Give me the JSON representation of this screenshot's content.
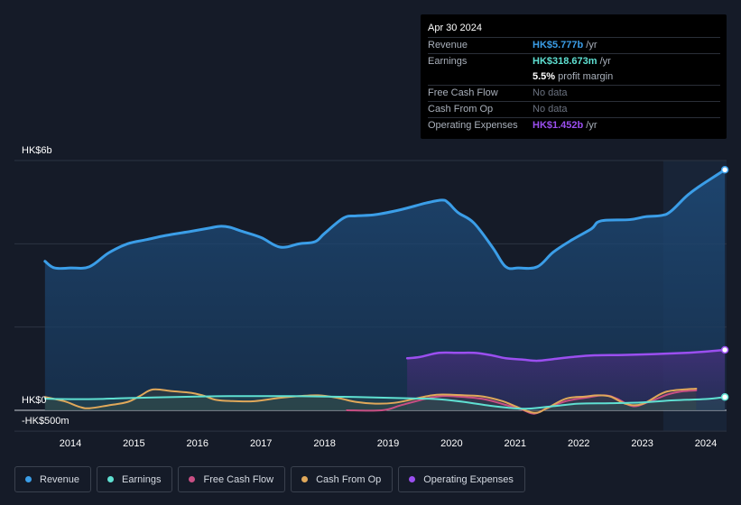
{
  "tooltip": {
    "date": "Apr 30 2024",
    "rows": {
      "revenue": {
        "label": "Revenue",
        "value": "HK$5.777b",
        "unit": "/yr"
      },
      "earnings": {
        "label": "Earnings",
        "value": "HK$318.673m",
        "unit": "/yr"
      },
      "margin": {
        "value": "5.5%",
        "text": "profit margin"
      },
      "fcf": {
        "label": "Free Cash Flow",
        "value": "No data"
      },
      "cfo": {
        "label": "Cash From Op",
        "value": "No data"
      },
      "opex": {
        "label": "Operating Expenses",
        "value": "HK$1.452b",
        "unit": "/yr"
      }
    }
  },
  "colors": {
    "revenue": "#3b9ee8",
    "earnings": "#5fe0d2",
    "fcf": "#c94f84",
    "cfo": "#e0a85a",
    "opex": "#9b4ff0"
  },
  "legend": {
    "revenue": "Revenue",
    "earnings": "Earnings",
    "fcf": "Free Cash Flow",
    "cfo": "Cash From Op",
    "opex": "Operating Expenses"
  },
  "chart_data": {
    "type": "area",
    "unit": "HK$ billions",
    "y_labels": {
      "top": "HK$6b",
      "zero": "HK$0",
      "bottom": "-HK$500m"
    },
    "ylim": [
      -0.5,
      6
    ],
    "xlim": [
      2013.3,
      2024.3
    ],
    "x_ticks": [
      "2014",
      "2015",
      "2016",
      "2017",
      "2018",
      "2019",
      "2020",
      "2021",
      "2022",
      "2023",
      "2024"
    ],
    "forecast_start": 2023.33,
    "series": [
      {
        "name": "Revenue",
        "key": "revenue",
        "points": [
          [
            2013.6,
            3.58
          ],
          [
            2013.75,
            3.42
          ],
          [
            2014.0,
            3.42
          ],
          [
            2014.3,
            3.45
          ],
          [
            2014.6,
            3.78
          ],
          [
            2014.9,
            4.0
          ],
          [
            2015.2,
            4.1
          ],
          [
            2015.5,
            4.2
          ],
          [
            2015.9,
            4.3
          ],
          [
            2016.2,
            4.38
          ],
          [
            2016.35,
            4.42
          ],
          [
            2016.5,
            4.4
          ],
          [
            2016.7,
            4.3
          ],
          [
            2017.0,
            4.15
          ],
          [
            2017.3,
            3.92
          ],
          [
            2017.6,
            4.0
          ],
          [
            2017.85,
            4.05
          ],
          [
            2018.0,
            4.25
          ],
          [
            2018.3,
            4.62
          ],
          [
            2018.5,
            4.67
          ],
          [
            2018.8,
            4.7
          ],
          [
            2019.2,
            4.82
          ],
          [
            2019.6,
            4.98
          ],
          [
            2019.85,
            5.05
          ],
          [
            2019.95,
            4.98
          ],
          [
            2020.1,
            4.75
          ],
          [
            2020.35,
            4.5
          ],
          [
            2020.65,
            3.9
          ],
          [
            2020.85,
            3.45
          ],
          [
            2021.05,
            3.42
          ],
          [
            2021.35,
            3.45
          ],
          [
            2021.6,
            3.8
          ],
          [
            2021.9,
            4.1
          ],
          [
            2022.2,
            4.36
          ],
          [
            2022.35,
            4.55
          ],
          [
            2022.8,
            4.58
          ],
          [
            2023.05,
            4.65
          ],
          [
            2023.3,
            4.68
          ],
          [
            2023.45,
            4.78
          ],
          [
            2023.7,
            5.15
          ],
          [
            2023.9,
            5.38
          ],
          [
            2024.1,
            5.58
          ],
          [
            2024.3,
            5.777
          ]
        ]
      },
      {
        "name": "Earnings",
        "key": "earnings",
        "points": [
          [
            2013.6,
            0.28
          ],
          [
            2013.85,
            0.27
          ],
          [
            2014.4,
            0.27
          ],
          [
            2014.8,
            0.29
          ],
          [
            2015.3,
            0.31
          ],
          [
            2016.0,
            0.33
          ],
          [
            2016.5,
            0.34
          ],
          [
            2017.0,
            0.34
          ],
          [
            2017.5,
            0.34
          ],
          [
            2018.0,
            0.33
          ],
          [
            2018.5,
            0.32
          ],
          [
            2019.0,
            0.3
          ],
          [
            2019.6,
            0.28
          ],
          [
            2019.85,
            0.26
          ],
          [
            2020.2,
            0.2
          ],
          [
            2020.6,
            0.11
          ],
          [
            2020.9,
            0.06
          ],
          [
            2021.2,
            0.04
          ],
          [
            2021.6,
            0.1
          ],
          [
            2022.0,
            0.16
          ],
          [
            2022.5,
            0.17
          ],
          [
            2023.0,
            0.19
          ],
          [
            2023.5,
            0.24
          ],
          [
            2024.0,
            0.27
          ],
          [
            2024.3,
            0.319
          ]
        ]
      },
      {
        "name": "Free Cash Flow",
        "key": "fcf",
        "points": [
          [
            2018.35,
            0.0
          ],
          [
            2018.9,
            0.0
          ],
          [
            2019.2,
            0.12
          ],
          [
            2019.6,
            0.28
          ],
          [
            2019.85,
            0.34
          ],
          [
            2020.1,
            0.33
          ],
          [
            2020.5,
            0.27
          ],
          [
            2020.85,
            0.13
          ],
          [
            2021.1,
            0.02
          ],
          [
            2021.3,
            -0.08
          ],
          [
            2021.5,
            0.05
          ],
          [
            2021.8,
            0.22
          ],
          [
            2022.1,
            0.3
          ],
          [
            2022.4,
            0.36
          ],
          [
            2022.6,
            0.28
          ],
          [
            2022.85,
            0.1
          ],
          [
            2023.1,
            0.2
          ],
          [
            2023.4,
            0.38
          ],
          [
            2023.6,
            0.45
          ],
          [
            2023.85,
            0.48
          ]
        ]
      },
      {
        "name": "Cash From Op",
        "key": "cfo",
        "points": [
          [
            2013.6,
            0.32
          ],
          [
            2013.9,
            0.22
          ],
          [
            2014.15,
            0.08
          ],
          [
            2014.3,
            0.05
          ],
          [
            2014.6,
            0.12
          ],
          [
            2014.9,
            0.2
          ],
          [
            2015.1,
            0.35
          ],
          [
            2015.3,
            0.5
          ],
          [
            2015.6,
            0.46
          ],
          [
            2015.9,
            0.42
          ],
          [
            2016.1,
            0.35
          ],
          [
            2016.3,
            0.25
          ],
          [
            2016.6,
            0.22
          ],
          [
            2016.9,
            0.22
          ],
          [
            2017.3,
            0.3
          ],
          [
            2017.6,
            0.34
          ],
          [
            2017.9,
            0.36
          ],
          [
            2018.2,
            0.3
          ],
          [
            2018.5,
            0.2
          ],
          [
            2018.8,
            0.16
          ],
          [
            2019.1,
            0.18
          ],
          [
            2019.4,
            0.27
          ],
          [
            2019.65,
            0.35
          ],
          [
            2019.85,
            0.38
          ],
          [
            2020.2,
            0.36
          ],
          [
            2020.5,
            0.33
          ],
          [
            2020.8,
            0.22
          ],
          [
            2021.0,
            0.1
          ],
          [
            2021.3,
            -0.06
          ],
          [
            2021.5,
            0.05
          ],
          [
            2021.8,
            0.28
          ],
          [
            2022.1,
            0.33
          ],
          [
            2022.3,
            0.36
          ],
          [
            2022.5,
            0.33
          ],
          [
            2022.75,
            0.15
          ],
          [
            2023.0,
            0.15
          ],
          [
            2023.3,
            0.4
          ],
          [
            2023.5,
            0.48
          ],
          [
            2023.85,
            0.52
          ]
        ]
      },
      {
        "name": "Operating Expenses",
        "key": "opex",
        "points": [
          [
            2019.3,
            1.25
          ],
          [
            2019.5,
            1.28
          ],
          [
            2019.8,
            1.38
          ],
          [
            2020.1,
            1.38
          ],
          [
            2020.35,
            1.38
          ],
          [
            2020.6,
            1.33
          ],
          [
            2020.85,
            1.25
          ],
          [
            2021.1,
            1.22
          ],
          [
            2021.35,
            1.19
          ],
          [
            2021.6,
            1.23
          ],
          [
            2021.9,
            1.28
          ],
          [
            2022.25,
            1.32
          ],
          [
            2022.7,
            1.33
          ],
          [
            2023.2,
            1.35
          ],
          [
            2023.7,
            1.38
          ],
          [
            2024.0,
            1.41
          ],
          [
            2024.3,
            1.452
          ]
        ]
      }
    ]
  }
}
